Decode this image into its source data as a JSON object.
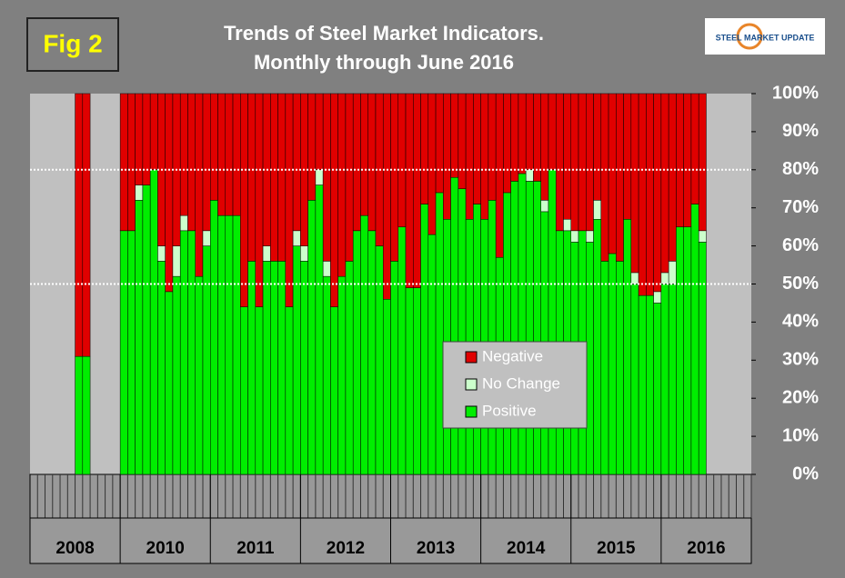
{
  "chart_data": {
    "type": "stacked_bar",
    "badge": "Fig 2",
    "title": "Trends of Steel Market Indicators.",
    "subtitle": "Monthly through June 2016",
    "logo_text": "STEEL MARKET UPDATE",
    "categories": [
      null,
      null,
      null,
      null,
      null,
      null,
      null,
      null,
      null,
      null,
      null,
      null,
      null,
      null,
      null,
      null,
      null,
      null,
      null,
      null,
      null,
      null,
      null,
      null,
      null,
      null,
      null,
      null,
      null,
      null,
      null,
      null,
      null,
      null,
      null,
      null,
      null,
      null,
      null,
      null,
      null,
      null,
      null,
      null,
      null,
      null,
      null,
      null,
      null,
      null,
      null,
      null,
      null,
      null,
      null,
      null,
      null,
      null,
      null,
      null,
      null,
      null,
      null,
      null,
      null,
      null,
      null,
      null,
      null,
      null,
      null,
      null,
      null,
      null,
      null,
      null,
      null,
      null,
      null,
      null,
      null,
      null,
      null,
      null,
      null,
      null,
      null,
      null,
      null,
      null,
      null,
      null,
      null,
      null,
      null,
      null
    ],
    "category_groups": [
      "2008",
      "2010",
      "2011",
      "2012",
      "2013",
      "2014",
      "2015",
      "2016"
    ],
    "series": [
      {
        "name": "Positive",
        "color": "#00ee00",
        "values": [
          null,
          null,
          null,
          null,
          null,
          null,
          31,
          31,
          null,
          null,
          null,
          null,
          64,
          64,
          72,
          76,
          80,
          56,
          48,
          52,
          64,
          64,
          52,
          60,
          72,
          68,
          68,
          68,
          44,
          56,
          44,
          56,
          56,
          56,
          44,
          60,
          56,
          72,
          76,
          52,
          44,
          52,
          56,
          64,
          68,
          64,
          60,
          46,
          56,
          65,
          49,
          49,
          71,
          63,
          74,
          67,
          78,
          75,
          67,
          71,
          67,
          72,
          57,
          74,
          77,
          79,
          77,
          77,
          69,
          80,
          64,
          64,
          61,
          64,
          61,
          67,
          56,
          58,
          56,
          67,
          50,
          47,
          47,
          45,
          50,
          50,
          65,
          65,
          71,
          61,
          null,
          null,
          null,
          null,
          null,
          null
        ]
      },
      {
        "name": "No Change",
        "color": "#ccffcc",
        "values": [
          null,
          null,
          null,
          null,
          null,
          null,
          0,
          0,
          null,
          null,
          null,
          null,
          0,
          0,
          4,
          0,
          0,
          4,
          0,
          8,
          4,
          0,
          0,
          4,
          0,
          0,
          0,
          0,
          0,
          0,
          0,
          4,
          0,
          0,
          0,
          4,
          4,
          0,
          4,
          4,
          0,
          0,
          0,
          0,
          0,
          0,
          0,
          0,
          0,
          0,
          0,
          0,
          0,
          0,
          0,
          0,
          0,
          0,
          0,
          0,
          0,
          0,
          0,
          0,
          0,
          0,
          3,
          0,
          3,
          0,
          0,
          3,
          3,
          0,
          3,
          5,
          0,
          0,
          0,
          0,
          3,
          0,
          0,
          3,
          3,
          6,
          0,
          0,
          0,
          3,
          null,
          null,
          null,
          null,
          null,
          null
        ]
      },
      {
        "name": "Negative",
        "color": "#e00000",
        "values": [
          null,
          null,
          null,
          null,
          null,
          null,
          69,
          69,
          null,
          null,
          null,
          null,
          36,
          36,
          24,
          24,
          20,
          40,
          52,
          40,
          32,
          36,
          48,
          36,
          28,
          32,
          32,
          32,
          56,
          44,
          56,
          40,
          44,
          44,
          56,
          36,
          40,
          28,
          20,
          44,
          56,
          48,
          44,
          36,
          32,
          36,
          40,
          54,
          44,
          35,
          51,
          51,
          29,
          37,
          26,
          33,
          22,
          25,
          33,
          29,
          33,
          28,
          43,
          26,
          23,
          21,
          20,
          23,
          28,
          20,
          36,
          33,
          36,
          36,
          36,
          28,
          44,
          42,
          44,
          33,
          47,
          53,
          53,
          52,
          47,
          44,
          35,
          35,
          29,
          36,
          null,
          null,
          null,
          null,
          null,
          null
        ]
      }
    ],
    "legend_order": [
      2,
      1,
      0
    ],
    "ylim": [
      0,
      100
    ],
    "yticks": [
      {
        "value": 0,
        "label": "0%"
      },
      {
        "value": 10,
        "label": "10%"
      },
      {
        "value": 20,
        "label": "20%"
      },
      {
        "value": 30,
        "label": "30%"
      },
      {
        "value": 40,
        "label": "40%"
      },
      {
        "value": 50,
        "label": "50%"
      },
      {
        "value": 60,
        "label": "60%"
      },
      {
        "value": 70,
        "label": "70%"
      },
      {
        "value": 80,
        "label": "80%"
      },
      {
        "value": 90,
        "label": "90%"
      },
      {
        "value": 100,
        "label": "100%"
      }
    ],
    "reference_lines": [
      50,
      80
    ]
  }
}
